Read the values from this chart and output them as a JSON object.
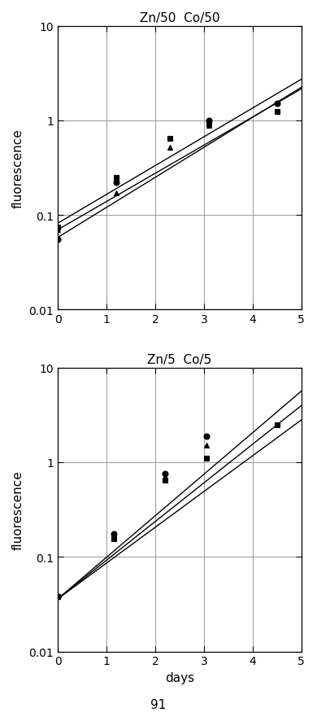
{
  "top_title": "Zn/50  Co/50",
  "bottom_title": "Zn/5  Co/5",
  "xlabel": "days",
  "ylabel": "fluorescence",
  "page_number": "91",
  "top": {
    "series": [
      {
        "marker": "o",
        "x_data": [
          0,
          1.2,
          3.1,
          4.5
        ],
        "y_data": [
          0.055,
          0.22,
          1.0,
          1.5
        ],
        "line_y0": 0.058,
        "mu": 0.73
      },
      {
        "marker": "^",
        "x_data": [
          0,
          1.2,
          2.3,
          3.1
        ],
        "y_data": [
          0.07,
          0.17,
          0.52,
          0.88
        ],
        "line_y0": 0.07,
        "mu": 0.685
      },
      {
        "marker": "s",
        "x_data": [
          0,
          1.2,
          2.3,
          3.1,
          4.5
        ],
        "y_data": [
          0.075,
          0.25,
          0.65,
          0.93,
          1.25
        ],
        "line_y0": 0.082,
        "mu": 0.7
      }
    ],
    "ylim": [
      0.01,
      10
    ],
    "xlim": [
      0,
      5
    ]
  },
  "bottom": {
    "series": [
      {
        "marker": "o",
        "x_data": [
          0,
          1.15,
          2.2,
          3.05
        ],
        "y_data": [
          0.038,
          0.175,
          0.75,
          1.9
        ],
        "line_y0": 0.036,
        "mu": 1.01
      },
      {
        "marker": "^",
        "x_data": [
          0,
          1.15,
          2.2,
          3.05
        ],
        "y_data": [
          0.038,
          0.165,
          0.7,
          1.5
        ],
        "line_y0": 0.036,
        "mu": 0.94
      },
      {
        "marker": "s",
        "x_data": [
          0,
          1.15,
          2.2,
          3.05,
          4.5
        ],
        "y_data": [
          0.038,
          0.155,
          0.65,
          1.1,
          2.5
        ],
        "line_y0": 0.036,
        "mu": 0.87
      }
    ],
    "ylim": [
      0.01,
      10
    ],
    "xlim": [
      0,
      5
    ]
  },
  "marker_size": 5,
  "line_color": "black",
  "marker_color": "black",
  "background_color": "white",
  "grid_color": "#888888",
  "title_fontsize": 11,
  "label_fontsize": 11,
  "tick_fontsize": 10,
  "page_fontsize": 11
}
